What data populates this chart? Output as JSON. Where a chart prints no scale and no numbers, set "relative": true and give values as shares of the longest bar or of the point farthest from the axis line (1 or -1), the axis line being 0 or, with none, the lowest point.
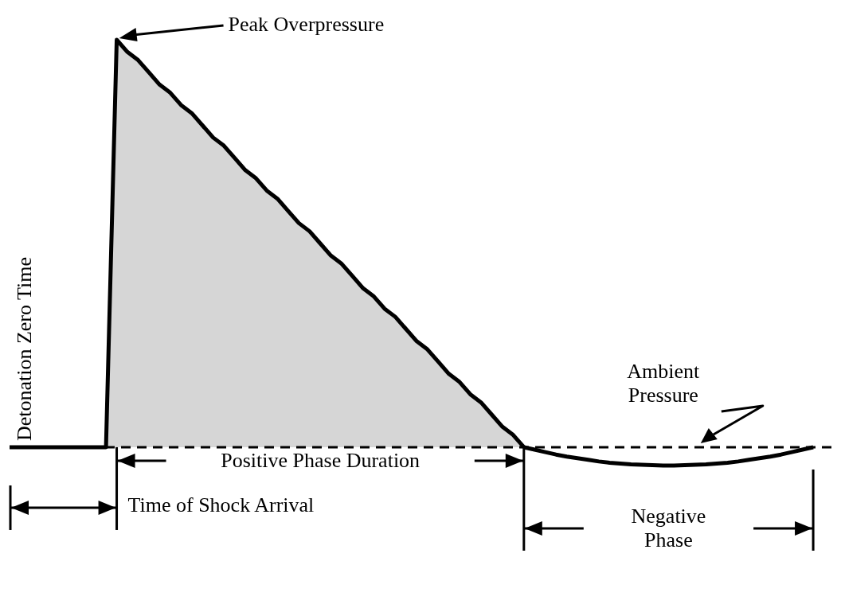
{
  "chart_data": {
    "type": "area",
    "relative": true,
    "marker": "none",
    "categories": [
      null,
      null,
      null,
      null,
      null,
      null,
      null,
      null,
      null,
      null,
      null,
      null,
      null,
      null,
      null,
      null,
      null,
      null,
      null,
      null,
      null,
      null,
      null,
      null,
      null,
      null,
      null,
      null,
      null,
      null,
      null,
      null,
      null,
      null,
      null,
      null,
      null,
      null,
      null,
      null,
      null,
      null,
      null,
      null,
      null,
      null,
      null,
      null,
      null,
      null,
      null,
      null,
      null,
      null,
      null,
      null,
      null,
      null,
      null,
      null,
      null,
      null,
      null,
      null,
      null,
      null,
      null,
      null,
      null,
      null,
      null,
      null,
      null,
      null,
      null,
      null,
      null,
      null
    ],
    "series": [
      {
        "type": "area",
        "color": "#000000",
        "values": [
          0,
          0,
          0,
          0,
          0,
          0,
          0,
          0,
          0,
          0,
          1,
          0.97,
          0.95,
          0.92,
          0.89,
          0.87,
          0.84,
          0.82,
          0.79,
          0.76,
          0.74,
          0.71,
          0.68,
          0.66,
          0.63,
          0.61,
          0.58,
          0.55,
          0.53,
          0.5,
          0.47,
          0.45,
          0.42,
          0.39,
          0.37,
          0.34,
          0.32,
          0.29,
          0.26,
          0.24,
          0.21,
          0.18,
          0.16,
          0.13,
          0.11,
          0.08,
          0.05,
          0.03,
          0,
          null,
          null,
          null,
          null,
          null,
          null,
          null,
          null,
          null,
          null,
          null,
          null,
          null,
          null,
          null,
          null,
          null,
          null,
          null,
          null,
          null,
          null,
          null,
          null,
          null,
          null,
          null,
          null,
          null
        ]
      },
      {
        "type": "line",
        "color": "#000000",
        "values": [
          null,
          null,
          null,
          null,
          null,
          null,
          null,
          null,
          null,
          null,
          null,
          null,
          null,
          null,
          null,
          null,
          null,
          null,
          null,
          null,
          null,
          null,
          null,
          null,
          null,
          null,
          null,
          null,
          null,
          null,
          null,
          null,
          null,
          null,
          null,
          null,
          null,
          null,
          null,
          null,
          null,
          null,
          null,
          null,
          null,
          null,
          null,
          null,
          0,
          -0.006,
          -0.012,
          -0.018,
          -0.023,
          -0.027,
          -0.031,
          -0.035,
          -0.038,
          -0.04,
          -0.042,
          -0.043,
          -0.044,
          -0.045,
          -0.045,
          -0.044,
          -0.043,
          -0.042,
          -0.04,
          -0.038,
          -0.035,
          -0.031,
          -0.027,
          -0.023,
          -0.018,
          -0.012,
          -0.006,
          0,
          null,
          null
        ]
      }
    ],
    "ref_lines": [
      {
        "axis": "y",
        "value": 0,
        "label": "Ambient Pressure",
        "line_style": "dashed",
        "color": "#000000"
      }
    ],
    "annotations": [
      "Peak Overpressure",
      "Detonation Zero Time",
      "Time of Shock Arrival",
      "Positive Phase Duration",
      "Negative Phase"
    ]
  }
}
